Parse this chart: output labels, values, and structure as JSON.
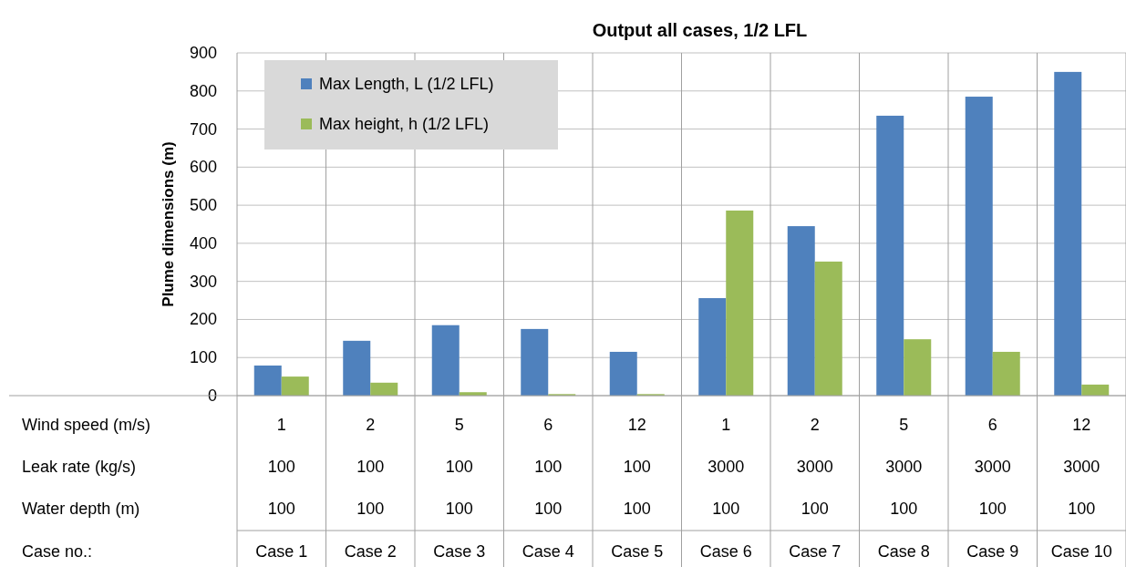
{
  "chart_data": {
    "type": "bar",
    "title": "Output all cases, 1/2 LFL",
    "ylabel": "Plume dimensions (m)",
    "categories": [
      "1\n100\n100\nCase 1",
      "2\n100\n100\nCase 2",
      "5\n100\n100\nCase 3",
      "6\n100\n100\nCase 4",
      "12\n100\n100\nCase 5",
      "1\n3000\n100\nCase 6",
      "2\n3000\n100\nCase 7",
      "5\n3000\n100\nCase 8",
      "6\n3000\n100\nCase 9",
      "12\n3000\n100\nCase 10"
    ],
    "series": [
      {
        "name": "Max Length, L (1/2 LFL)",
        "color": "#4f81bd",
        "values": [
          79,
          144,
          185,
          175,
          115,
          256,
          445,
          735,
          785,
          850
        ]
      },
      {
        "name": "Max height, h (1/2 LFL)",
        "color": "#9bbb59",
        "values": [
          50,
          34,
          9,
          4,
          4,
          486,
          352,
          148,
          115,
          29
        ]
      }
    ],
    "ylim": [
      0,
      900
    ],
    "yticks": [
      0,
      100,
      200,
      300,
      400,
      500,
      600,
      700,
      800,
      900
    ],
    "grid": "y",
    "legend": "top left",
    "annotations": [
      "Wind speed (m/s)",
      "Leak rate (kg/s)",
      "Water depth (m)",
      "Case no.:"
    ]
  }
}
